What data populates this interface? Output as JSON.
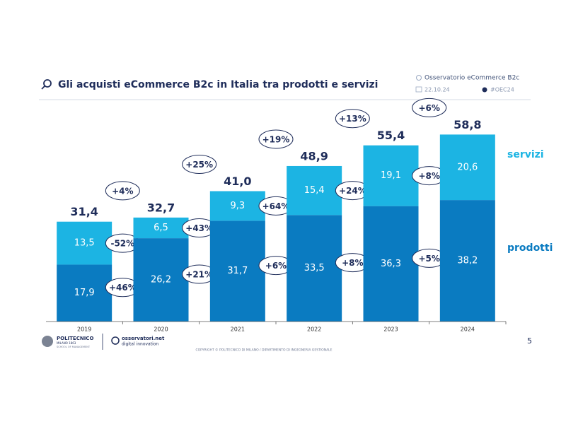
{
  "header": {
    "title": "Gli acquisti eCommerce B2c in Italia tra prodotti e servizi",
    "source": "Osservatorio eCommerce B2c",
    "date": "22.10.24",
    "hashtag": "#OEC24"
  },
  "chart_data": {
    "type": "stacked-bar",
    "categories": [
      "2019",
      "2020",
      "2021",
      "2022",
      "2023",
      "2024"
    ],
    "series": [
      {
        "name": "prodotti",
        "color": "#0a7bc1",
        "values": [
          17.9,
          26.2,
          31.7,
          33.5,
          36.3,
          38.2
        ],
        "value_labels": [
          "17,9",
          "26,2",
          "31,7",
          "33,5",
          "36,3",
          "38,2"
        ]
      },
      {
        "name": "servizi",
        "color": "#1cb4e3",
        "values": [
          13.5,
          6.5,
          9.3,
          15.4,
          19.1,
          20.6
        ],
        "value_labels": [
          "13,5",
          "6,5",
          "9,3",
          "15,4",
          "19,1",
          "20,6"
        ]
      }
    ],
    "totals": {
      "values": [
        31.4,
        32.7,
        41.0,
        48.9,
        55.4,
        58.8
      ],
      "value_labels": [
        "31,4",
        "32,7",
        "41,0",
        "48,9",
        "55,4",
        "58,8"
      ]
    },
    "growth_total": {
      "values": [
        4,
        25,
        19,
        13,
        6
      ],
      "value_labels": [
        "+4%",
        "+25%",
        "+19%",
        "+13%",
        "+6%"
      ]
    },
    "growth_servizi": {
      "values": [
        -52,
        43,
        64,
        24,
        8
      ],
      "value_labels": [
        "-52%",
        "+43%",
        "+64%",
        "+24%",
        "+8%"
      ]
    },
    "growth_prodotti": {
      "values": [
        46,
        21,
        6,
        8,
        5
      ],
      "value_labels": [
        "+46%",
        "+21%",
        "+6%",
        "+8%",
        "+5%"
      ]
    },
    "ylim": [
      0,
      60
    ]
  },
  "footer": {
    "logo1": "POLITECNICO",
    "logo1_sub": "MILANO 1863",
    "logo1_sub2": "SCHOOL OF MANAGEMENT",
    "logo2": "osservatori.net",
    "logo2_sub": "digital innovation",
    "copyright": "COPYRIGHT © POLITECNICO DI MILANO / DIPARTIMENTO DI INGEGNERIA GESTIONALE",
    "page": "5"
  }
}
